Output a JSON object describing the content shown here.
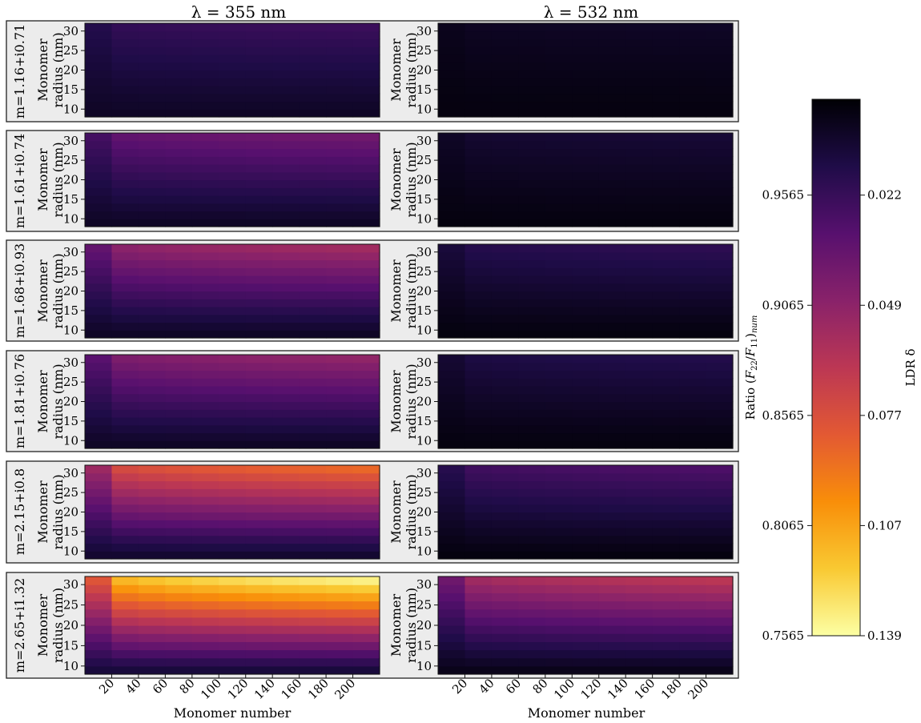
{
  "chart_data": {
    "type": "heatmap",
    "column_titles": [
      "λ = 355 nm",
      "λ = 532 nm"
    ],
    "row_labels": [
      "m=1.16+i0.71",
      "m=1.61+i0.74",
      "m=1.68+i0.93",
      "m=1.81+i0.76",
      "m=2.15+i0.8",
      "m=2.65+i1.32"
    ],
    "xlabel": "Monomer number",
    "ylabel": "Monomer radius (nm)",
    "x_ticks": [
      20,
      40,
      60,
      80,
      100,
      120,
      140,
      160,
      180,
      200
    ],
    "y_ticks": [
      10,
      15,
      20,
      25,
      30
    ],
    "x": [
      10,
      30,
      50,
      70,
      90,
      110,
      130,
      150,
      170,
      190,
      210
    ],
    "y": [
      9,
      11,
      13,
      15,
      17,
      19,
      21,
      23,
      25,
      27,
      29,
      31
    ],
    "colorbar": {
      "left_label": "Ratio (F22/F11)num",
      "left_ticks": [
        "0.7565",
        "0.8065",
        "0.8565",
        "0.9065",
        "0.9565"
      ],
      "right_label": "LDR δ",
      "right_ticks": [
        "0.139",
        "0.107",
        "0.077",
        "0.049",
        "0.022"
      ],
      "min": 0.7565,
      "max": 1.0,
      "colormap": "inferno_r"
    },
    "panels": [
      {
        "row": 0,
        "col": 0,
        "ratio_min": 0.985,
        "ratio_max": 0.955
      },
      {
        "row": 0,
        "col": 1,
        "ratio_min": 0.995,
        "ratio_max": 0.985
      },
      {
        "row": 1,
        "col": 0,
        "ratio_min": 0.985,
        "ratio_max": 0.925
      },
      {
        "row": 1,
        "col": 1,
        "ratio_min": 0.995,
        "ratio_max": 0.978
      },
      {
        "row": 2,
        "col": 0,
        "ratio_min": 0.985,
        "ratio_max": 0.895
      },
      {
        "row": 2,
        "col": 1,
        "ratio_min": 0.995,
        "ratio_max": 0.962
      },
      {
        "row": 3,
        "col": 0,
        "ratio_min": 0.985,
        "ratio_max": 0.905
      },
      {
        "row": 3,
        "col": 1,
        "ratio_min": 0.995,
        "ratio_max": 0.968
      },
      {
        "row": 4,
        "col": 0,
        "ratio_min": 0.98,
        "ratio_max": 0.84
      },
      {
        "row": 4,
        "col": 1,
        "ratio_min": 0.995,
        "ratio_max": 0.945
      },
      {
        "row": 5,
        "col": 0,
        "ratio_min": 0.975,
        "ratio_max": 0.765
      },
      {
        "row": 5,
        "col": 1,
        "ratio_min": 0.99,
        "ratio_max": 0.88
      }
    ],
    "colors": {
      "panel_background": "#ececec",
      "colormap_stops": [
        "#fcffa4",
        "#f9c932",
        "#f98e09",
        "#e35933",
        "#bc3754",
        "#89226a",
        "#57106e",
        "#1f0c48",
        "#000004"
      ]
    }
  }
}
